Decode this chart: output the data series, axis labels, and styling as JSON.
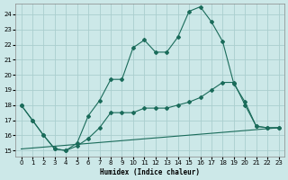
{
  "xlabel": "Humidex (Indice chaleur)",
  "bg_color": "#cce8e8",
  "grid_color": "#aacece",
  "line_color": "#1a6b5a",
  "xlim": [
    -0.5,
    23.5
  ],
  "ylim": [
    14.6,
    24.7
  ],
  "xticks": [
    0,
    1,
    2,
    3,
    4,
    5,
    6,
    7,
    8,
    9,
    10,
    11,
    12,
    13,
    14,
    15,
    16,
    17,
    18,
    19,
    20,
    21,
    22,
    23
  ],
  "yticks": [
    15,
    16,
    17,
    18,
    19,
    20,
    21,
    22,
    23,
    24
  ],
  "series1": {
    "x": [
      0,
      1,
      2,
      3,
      4,
      5,
      6,
      7,
      8,
      9,
      10,
      11,
      12,
      13,
      14,
      15,
      16,
      17,
      18,
      19,
      20,
      21,
      22,
      23
    ],
    "y": [
      18,
      17,
      16,
      15.1,
      15.0,
      15.5,
      17.3,
      18.3,
      19.7,
      19.7,
      21.8,
      22.3,
      21.5,
      21.5,
      22.5,
      24.2,
      24.5,
      23.5,
      22.2,
      19.4,
      18.2,
      16.6,
      16.5,
      16.5
    ]
  },
  "series2": {
    "x": [
      0,
      1,
      2,
      3,
      4,
      5,
      6,
      7,
      8,
      9,
      10,
      11,
      12,
      13,
      14,
      15,
      16,
      17,
      18,
      19,
      20,
      21,
      22,
      23
    ],
    "y": [
      18,
      17,
      16,
      15.1,
      15.0,
      15.3,
      15.8,
      16.5,
      17.5,
      17.5,
      17.5,
      17.8,
      17.8,
      17.8,
      18.0,
      18.2,
      18.5,
      19.0,
      19.5,
      19.5,
      18.0,
      16.6,
      16.5,
      16.5
    ]
  },
  "series3": {
    "x": [
      0,
      23
    ],
    "y": [
      15.1,
      16.5
    ]
  }
}
